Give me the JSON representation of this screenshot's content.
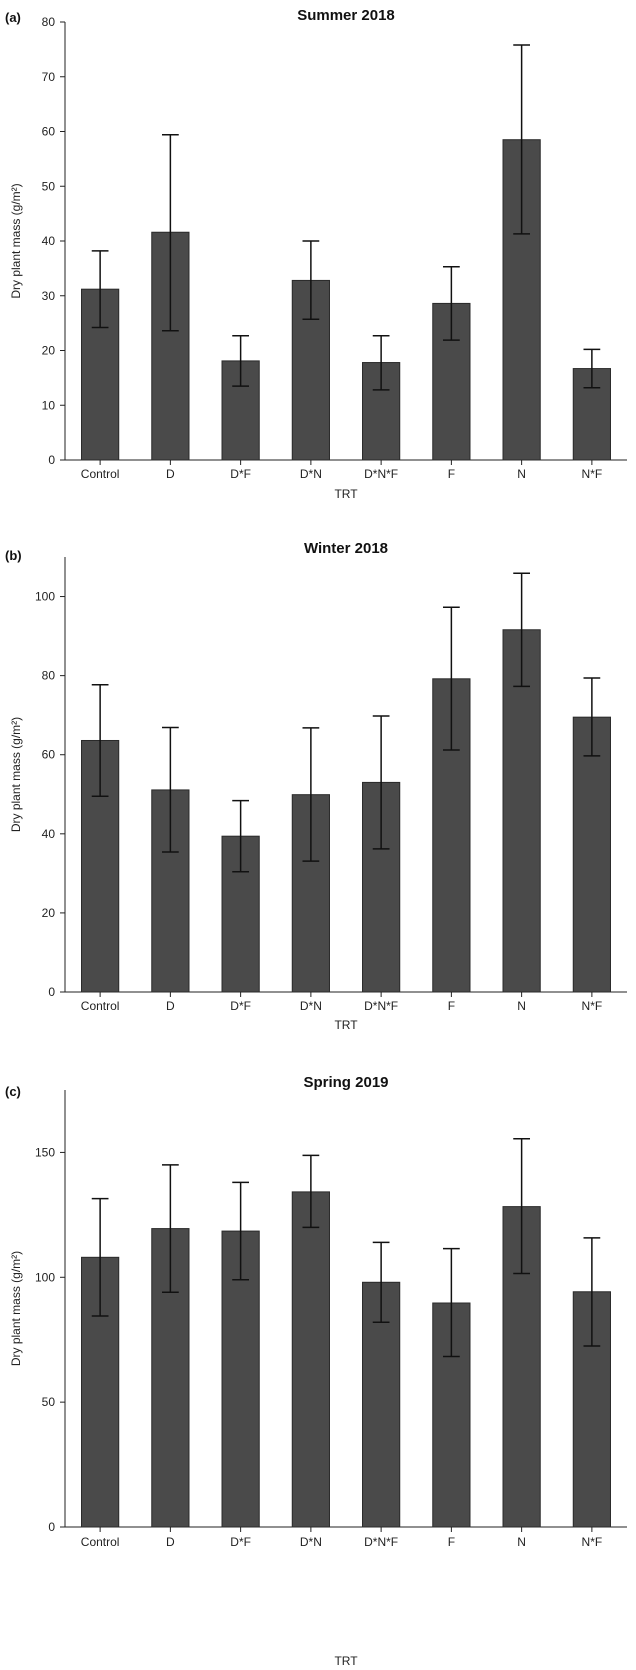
{
  "chart_data": [
    {
      "type": "bar",
      "panel": "(a)",
      "title": "Summer 2018",
      "xlabel": "TRT",
      "ylabel": "Dry plant mass (g/m²)",
      "categories": [
        "Control",
        "D",
        "D*F",
        "D*N",
        "D*N*F",
        "F",
        "N",
        "N*F"
      ],
      "values": [
        31.2,
        41.6,
        18.1,
        32.8,
        17.8,
        28.6,
        58.5,
        16.7
      ],
      "error_low": [
        24.2,
        23.6,
        13.5,
        25.7,
        12.8,
        21.9,
        41.3,
        13.2
      ],
      "error_high": [
        38.2,
        59.4,
        22.7,
        40.0,
        22.7,
        35.3,
        75.8,
        20.2
      ],
      "yticks": [
        0,
        10,
        20,
        30,
        40,
        50,
        60,
        70,
        80
      ],
      "ylim": [
        0,
        80
      ],
      "grid": false
    },
    {
      "type": "bar",
      "panel": "(b)",
      "title": "Winter 2018",
      "xlabel": "TRT",
      "ylabel": "Dry plant mass (g/m²)",
      "categories": [
        "Control",
        "D",
        "D*F",
        "D*N",
        "D*N*F",
        "F",
        "N",
        "N*F"
      ],
      "values": [
        63.6,
        51.1,
        39.4,
        49.9,
        53.0,
        79.2,
        91.6,
        69.5
      ],
      "error_low": [
        49.5,
        35.4,
        30.4,
        33.1,
        36.2,
        61.2,
        77.3,
        59.7
      ],
      "error_high": [
        77.7,
        66.9,
        48.4,
        66.8,
        69.8,
        97.3,
        105.9,
        79.4
      ],
      "yticks": [
        0,
        20,
        40,
        60,
        80,
        100
      ],
      "ylim": [
        0,
        110
      ],
      "grid": false
    },
    {
      "type": "bar",
      "panel": "(c)",
      "title": "Spring 2019",
      "xlabel": "TRT",
      "ylabel": "Dry plant mass (g/m²)",
      "categories": [
        "Control",
        "D",
        "D*F",
        "D*N",
        "D*N*F",
        "F",
        "N",
        "N*F"
      ],
      "values": [
        108.0,
        119.5,
        118.5,
        134.2,
        98.0,
        89.7,
        128.3,
        94.2
      ],
      "error_low": [
        84.5,
        94.0,
        99.0,
        120.0,
        82.0,
        68.3,
        101.5,
        72.5
      ],
      "error_high": [
        131.5,
        145.0,
        138.0,
        148.8,
        114.0,
        111.5,
        155.5,
        115.8
      ],
      "yticks": [
        0,
        50,
        100,
        150
      ],
      "ylim": [
        0,
        175
      ],
      "grid": false
    }
  ]
}
